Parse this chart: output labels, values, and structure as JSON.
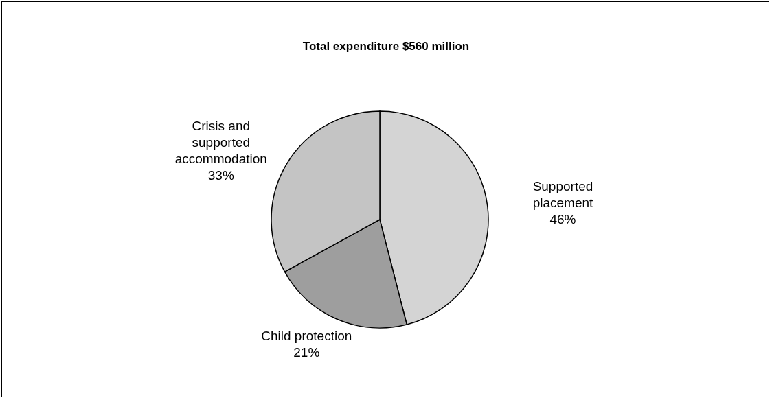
{
  "chart_data": {
    "type": "pie",
    "title": "Total expenditure $560 million",
    "categories": [
      "Supported placement",
      "Child protection",
      "Crisis and supported accommodation"
    ],
    "values": [
      46,
      21,
      33
    ],
    "value_labels": [
      "46%",
      "21%",
      "33%"
    ],
    "colors": [
      "#d4d4d4",
      "#9e9e9e",
      "#c4c4c4"
    ],
    "legend": false
  }
}
